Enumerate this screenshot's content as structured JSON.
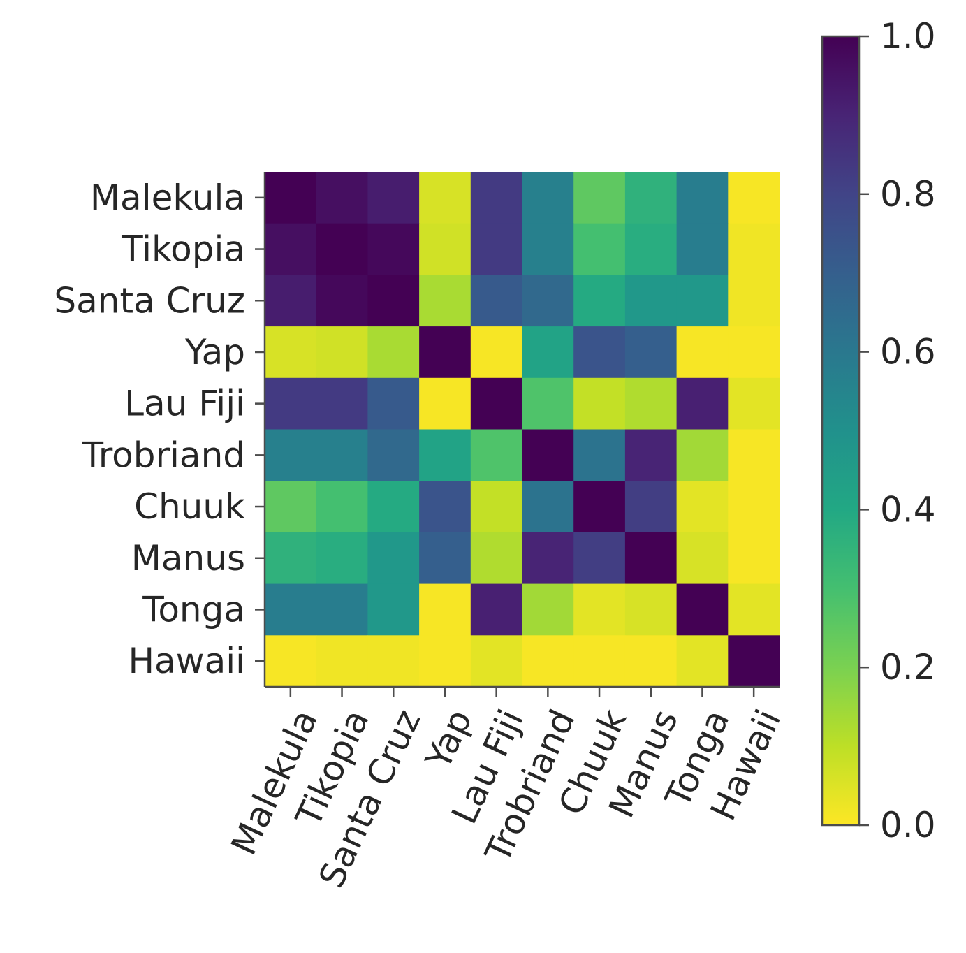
{
  "chart_data": {
    "type": "heatmap",
    "title": "",
    "xlabel": "",
    "ylabel": "",
    "row_labels": [
      "Malekula",
      "Tikopia",
      "Santa Cruz",
      "Yap",
      "Lau Fiji",
      "Trobriand",
      "Chuuk",
      "Manus",
      "Tonga",
      "Hawaii"
    ],
    "col_labels": [
      "Malekula",
      "Tikopia",
      "Santa Cruz",
      "Yap",
      "Lau Fiji",
      "Trobriand",
      "Chuuk",
      "Manus",
      "Tonga",
      "Hawaii"
    ],
    "values": [
      [
        1.0,
        0.96,
        0.92,
        0.06,
        0.83,
        0.57,
        0.25,
        0.36,
        0.58,
        0.01
      ],
      [
        0.96,
        1.0,
        0.98,
        0.07,
        0.83,
        0.57,
        0.3,
        0.38,
        0.58,
        0.02
      ],
      [
        0.92,
        0.98,
        1.0,
        0.13,
        0.72,
        0.66,
        0.39,
        0.47,
        0.47,
        0.02
      ],
      [
        0.06,
        0.07,
        0.13,
        1.0,
        0.01,
        0.42,
        0.74,
        0.7,
        0.01,
        0.01
      ],
      [
        0.83,
        0.83,
        0.72,
        0.01,
        1.0,
        0.28,
        0.09,
        0.12,
        0.91,
        0.04
      ],
      [
        0.57,
        0.57,
        0.66,
        0.42,
        0.28,
        1.0,
        0.62,
        0.9,
        0.14,
        0.01
      ],
      [
        0.25,
        0.3,
        0.39,
        0.74,
        0.09,
        0.62,
        1.0,
        0.82,
        0.04,
        0.01
      ],
      [
        0.36,
        0.38,
        0.47,
        0.7,
        0.12,
        0.9,
        0.82,
        1.0,
        0.06,
        0.01
      ],
      [
        0.58,
        0.58,
        0.47,
        0.01,
        0.91,
        0.14,
        0.04,
        0.06,
        1.0,
        0.04
      ],
      [
        0.01,
        0.02,
        0.02,
        0.01,
        0.04,
        0.01,
        0.01,
        0.01,
        0.04,
        1.0
      ]
    ],
    "colormap": "viridis_r",
    "colorbar": {
      "range": [
        0.0,
        1.0
      ],
      "ticks": [
        "0.0",
        "0.2",
        "0.4",
        "0.6",
        "0.8",
        "1.0"
      ]
    },
    "grid": false,
    "legend": "none"
  }
}
